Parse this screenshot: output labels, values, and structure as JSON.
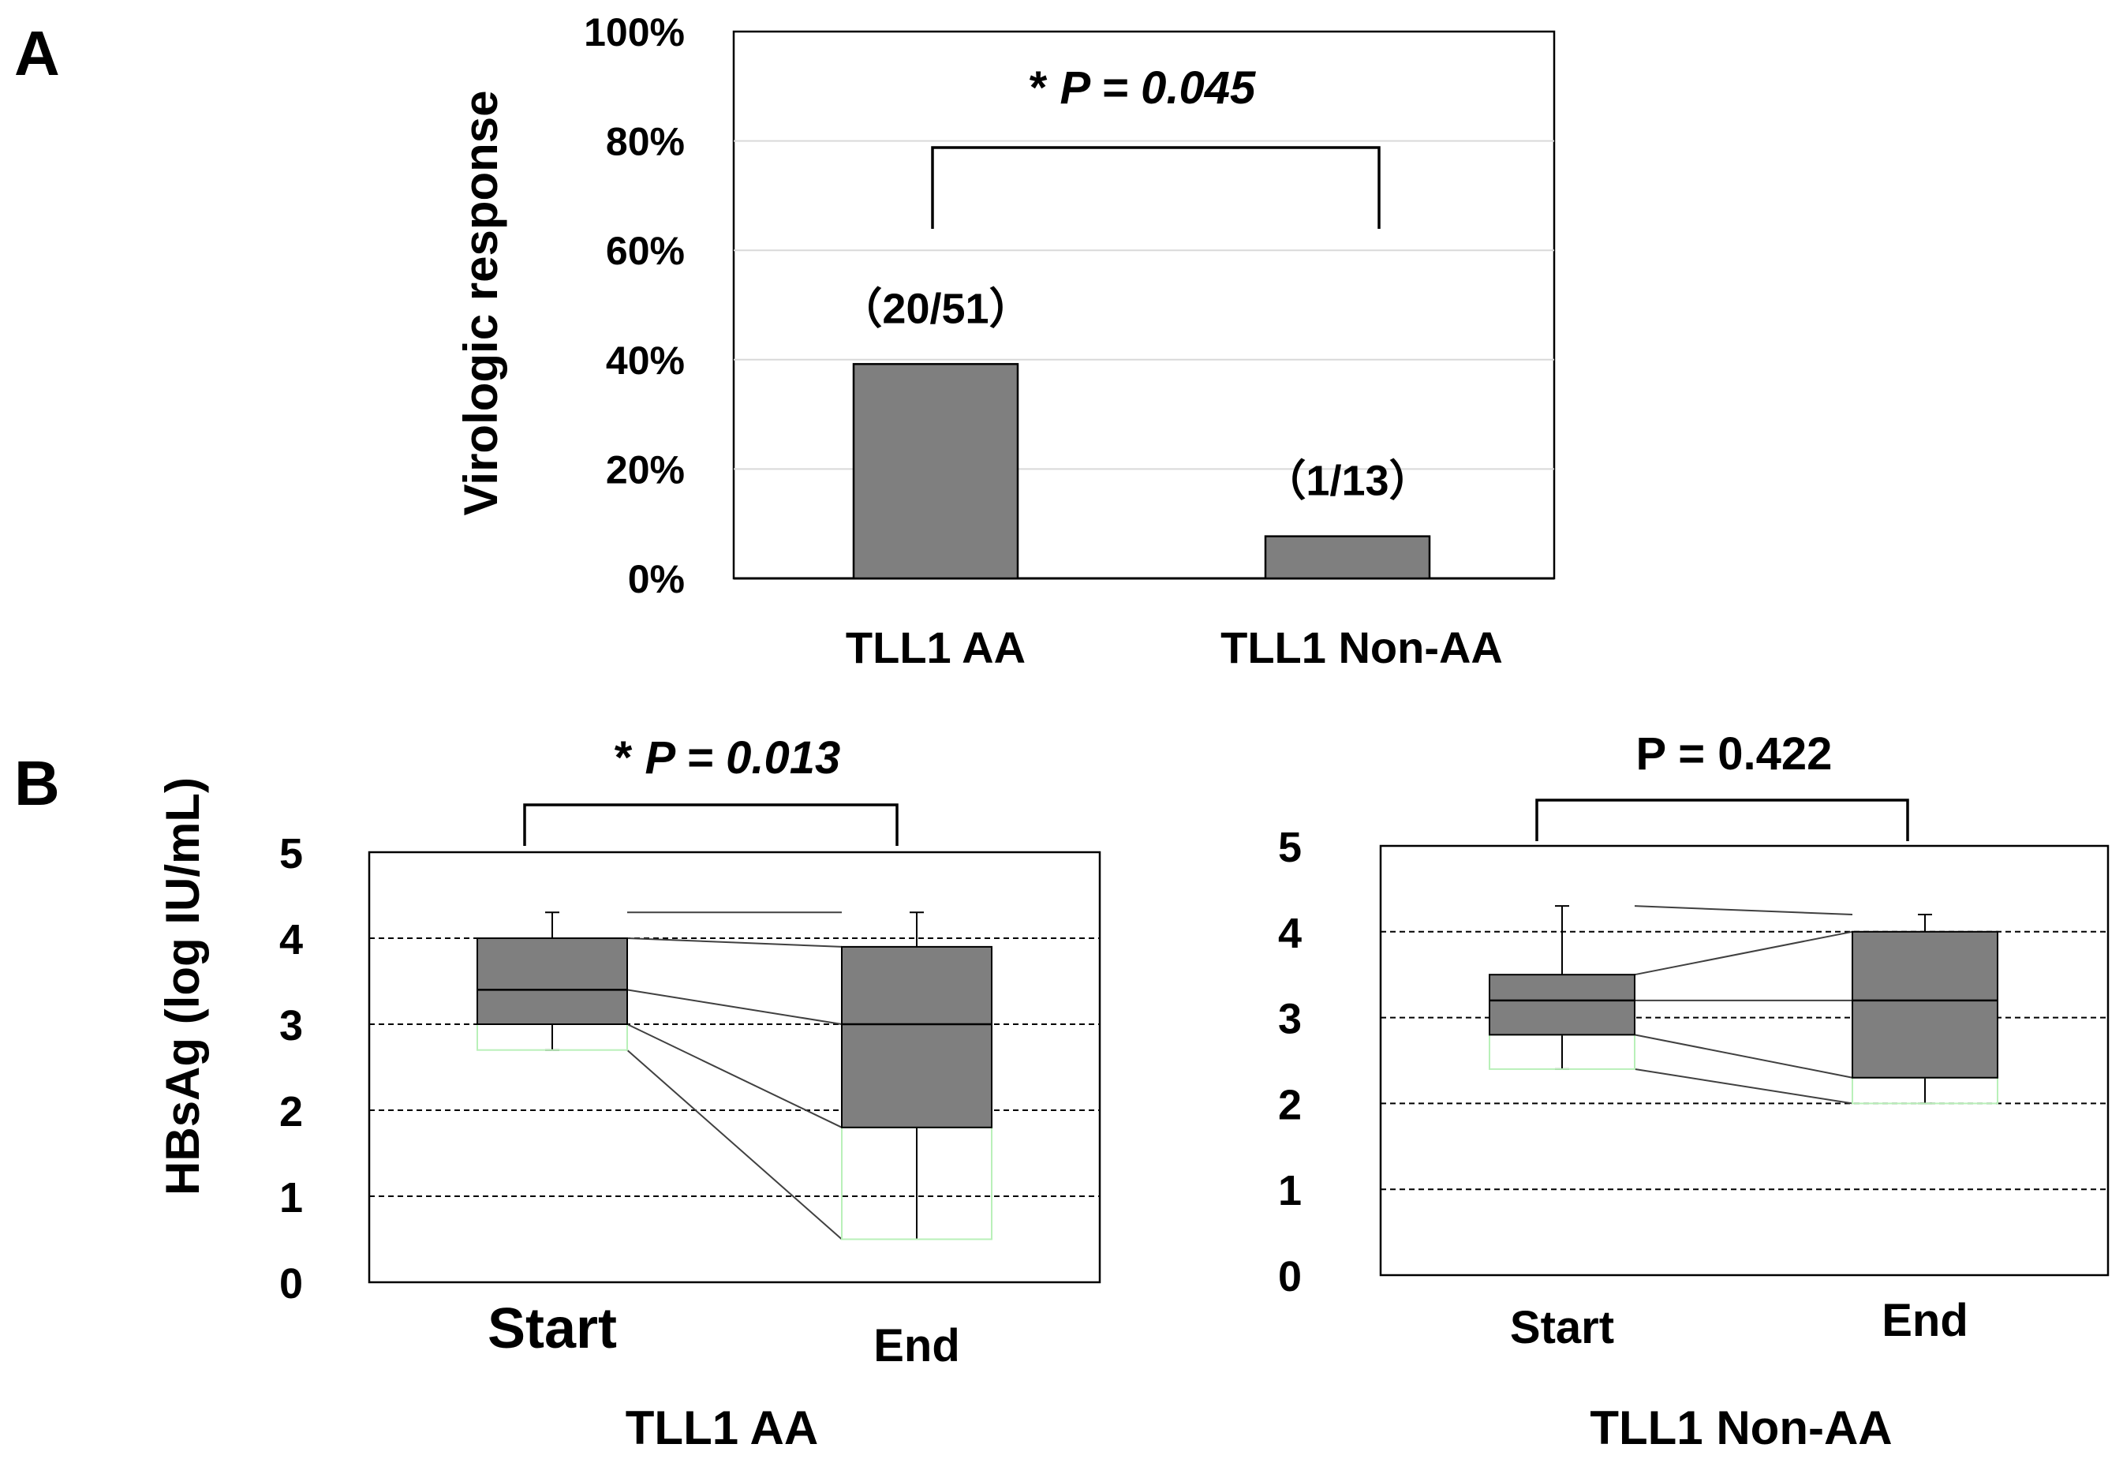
{
  "panels": {
    "a": "A",
    "b": "B"
  },
  "chart_data": [
    {
      "type": "bar",
      "panel": "A",
      "ylabel": "Virologic response",
      "ylim": [
        0,
        100
      ],
      "yticks": [
        "0%",
        "20%",
        "40%",
        "60%",
        "80%",
        "100%"
      ],
      "ytick_values": [
        0,
        20,
        40,
        60,
        80,
        100
      ],
      "categories": [
        "TLL1 AA",
        "TLL1 Non-AA"
      ],
      "values": [
        39.2,
        7.7
      ],
      "value_labels": [
        "（20/51）",
        "（1/13）"
      ],
      "significance": {
        "prefix": "*",
        "text": "P = 0.045"
      },
      "grid": true
    },
    {
      "type": "box",
      "panel": "B-left",
      "title": "TLL1 AA",
      "ylabel": "HBsAg (log  IU/mL)",
      "ylim": [
        0,
        5
      ],
      "yticks": [
        "0",
        "1",
        "2",
        "3",
        "4",
        "5"
      ],
      "categories": [
        "Start",
        "End"
      ],
      "boxes": [
        {
          "whisker_low": 2.7,
          "q1": 3.0,
          "median": 3.4,
          "q3": 4.0,
          "whisker_high": 4.3,
          "lower_q": 2.7
        },
        {
          "whisker_low": 0.5,
          "q1": 1.8,
          "median": 3.0,
          "q3": 3.9,
          "whisker_high": 4.3,
          "lower_q": 0.5
        }
      ],
      "paired_lines": [
        [
          4.0,
          3.9
        ],
        [
          3.4,
          3.0
        ],
        [
          3.0,
          1.8
        ],
        [
          2.7,
          0.5
        ],
        [
          4.3,
          4.3
        ]
      ],
      "significance": {
        "prefix": "*",
        "text": "P = 0.013"
      },
      "grid": "dashed"
    },
    {
      "type": "box",
      "panel": "B-right",
      "title": "TLL1 Non-AA",
      "ylabel": "",
      "ylim": [
        0,
        5
      ],
      "yticks": [
        "0",
        "1",
        "2",
        "3",
        "4",
        "5"
      ],
      "categories": [
        "Start",
        "End"
      ],
      "boxes": [
        {
          "whisker_low": 2.4,
          "q1": 2.8,
          "median": 3.2,
          "q3": 3.5,
          "whisker_high": 4.3,
          "lower_q": 2.4
        },
        {
          "whisker_low": 2.0,
          "q1": 2.3,
          "median": 3.2,
          "q3": 4.0,
          "whisker_high": 4.2,
          "lower_q": 2.0
        }
      ],
      "paired_lines": [
        [
          3.5,
          4.0
        ],
        [
          3.2,
          3.2
        ],
        [
          2.8,
          2.3
        ],
        [
          2.4,
          2.0
        ],
        [
          4.3,
          4.2
        ]
      ],
      "significance": {
        "prefix": "",
        "text": "P = 0.422"
      },
      "grid": "dashed"
    }
  ]
}
